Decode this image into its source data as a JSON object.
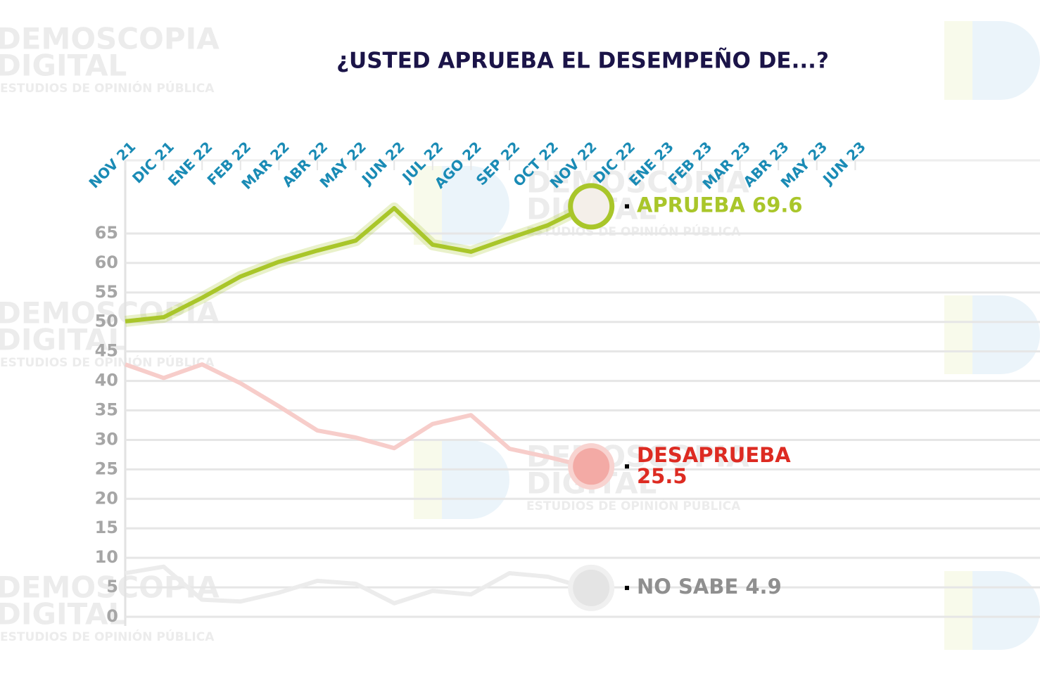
{
  "chart_data": {
    "type": "line",
    "title": "¿USTED APRUEBA EL DESEMPEÑO DE...?",
    "watermark": [
      "DEMOSCOPIA",
      "DIGITAL",
      "ESTUDIOS DE OPINIÓN PÚBLICA"
    ],
    "categories": [
      "NOV 21",
      "DIC 21",
      "ENE 22",
      "FEB 22",
      "MAR 22",
      "ABR 22",
      "MAY 22",
      "JUN 22",
      "JUL 22",
      "AGO 22",
      "SEP 22",
      "OCT 22",
      "NOV 22",
      "DIC 22",
      "ENE 23",
      "FEB 23",
      "MAR 23",
      "ABR 23",
      "MAY 23",
      "JUN 23"
    ],
    "series": [
      {
        "name": "APRUEBA",
        "color": "#a9c62a",
        "label_color": "#a9c62a",
        "values": [
          50.1,
          50.8,
          54.1,
          57.7,
          60.2,
          62.1,
          63.8,
          69.3,
          63.1,
          61.9,
          64.2,
          66.4,
          69.6,
          null,
          null,
          null,
          null,
          null,
          null,
          null
        ]
      },
      {
        "name": "DESAPRUEBA",
        "color": "#f7cdca",
        "label_color": "#dd2b22",
        "values": [
          42.8,
          40.5,
          42.8,
          39.6,
          35.7,
          31.6,
          30.4,
          28.6,
          32.7,
          34.2,
          28.5,
          27.1,
          25.5,
          null,
          null,
          null,
          null,
          null,
          null,
          null
        ]
      },
      {
        "name": "NO SABE",
        "color": "#ececec",
        "label_color": "#8f8f8f",
        "values": [
          7.4,
          8.5,
          2.9,
          2.6,
          4.1,
          6.1,
          5.6,
          2.3,
          4.4,
          3.8,
          7.4,
          6.8,
          4.9,
          null,
          null,
          null,
          null,
          null,
          null,
          null
        ]
      }
    ],
    "ylim": [
      0,
      77.4
    ],
    "yticks": [
      0,
      5,
      10,
      15,
      20,
      25,
      30,
      35,
      40,
      45,
      50,
      55,
      60,
      65
    ],
    "grid": true
  }
}
